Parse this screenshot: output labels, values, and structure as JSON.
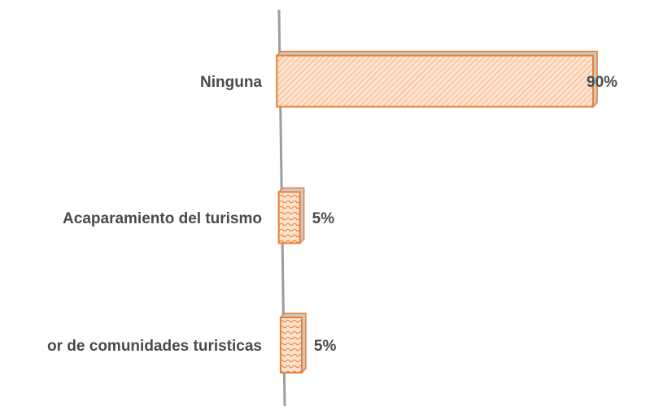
{
  "chart_data": {
    "type": "bar",
    "orientation": "horizontal",
    "categories": [
      "Ninguna",
      "Acaparamiento del turismo",
      "or de comunidades turisticas"
    ],
    "values": [
      90,
      5,
      5
    ],
    "value_labels": [
      "90%",
      "5%",
      "5%"
    ],
    "xlim": [
      0,
      100
    ],
    "grid": false,
    "legend": "none",
    "colors": {
      "bar_fill": "#fde3cf",
      "bar_stroke": "#ee7d31",
      "bar_shadow": "#c9c9c9",
      "axis": "#9e9e9e",
      "text": "#4a4a4a"
    }
  }
}
